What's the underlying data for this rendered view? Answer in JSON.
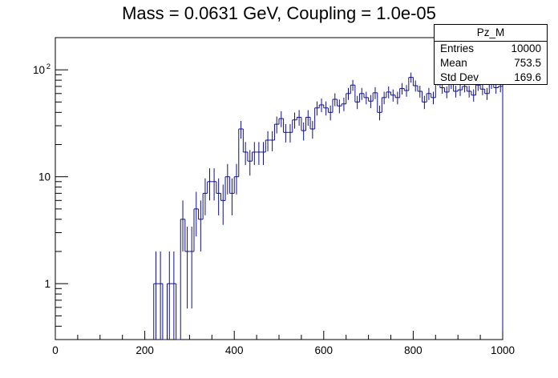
{
  "chart_data": {
    "type": "histogram",
    "title": "Mass = 0.0631 GeV, Coupling = 1.0e-05",
    "xlim": [
      0,
      1000
    ],
    "ylim": [
      0.3,
      200
    ],
    "y_scale": "log",
    "x_ticks": [
      "0",
      "200",
      "400",
      "600",
      "800",
      "1000"
    ],
    "y_ticks": [
      {
        "value": 1,
        "label": "1"
      },
      {
        "value": 10,
        "label": "10"
      },
      {
        "value": 100,
        "label": "10",
        "exp": "2"
      }
    ],
    "bin_width": 10,
    "line_color": "#0d0d8f",
    "bins": [
      [
        220,
        1
      ],
      [
        230,
        1
      ],
      [
        240,
        0
      ],
      [
        250,
        1
      ],
      [
        260,
        1
      ],
      [
        270,
        0
      ],
      [
        280,
        4
      ],
      [
        290,
        2
      ],
      [
        300,
        2
      ],
      [
        310,
        5
      ],
      [
        320,
        4
      ],
      [
        330,
        7
      ],
      [
        340,
        9
      ],
      [
        350,
        9
      ],
      [
        360,
        7
      ],
      [
        370,
        6
      ],
      [
        380,
        10
      ],
      [
        390,
        7
      ],
      [
        400,
        10
      ],
      [
        410,
        28
      ],
      [
        420,
        17
      ],
      [
        430,
        14
      ],
      [
        440,
        17
      ],
      [
        450,
        17
      ],
      [
        460,
        17
      ],
      [
        470,
        22
      ],
      [
        480,
        22
      ],
      [
        490,
        31
      ],
      [
        500,
        35
      ],
      [
        510,
        26
      ],
      [
        520,
        26
      ],
      [
        530,
        34
      ],
      [
        540,
        36
      ],
      [
        550,
        27
      ],
      [
        560,
        36
      ],
      [
        570,
        28
      ],
      [
        580,
        44
      ],
      [
        590,
        47
      ],
      [
        600,
        44
      ],
      [
        610,
        40
      ],
      [
        620,
        53
      ],
      [
        630,
        46
      ],
      [
        640,
        48
      ],
      [
        650,
        60
      ],
      [
        660,
        72
      ],
      [
        670,
        50
      ],
      [
        680,
        60
      ],
      [
        690,
        55
      ],
      [
        700,
        51
      ],
      [
        710,
        61
      ],
      [
        720,
        40
      ],
      [
        730,
        55
      ],
      [
        740,
        62
      ],
      [
        750,
        58
      ],
      [
        760,
        55
      ],
      [
        770,
        67
      ],
      [
        780,
        64
      ],
      [
        790,
        85
      ],
      [
        800,
        71
      ],
      [
        810,
        63
      ],
      [
        820,
        50
      ],
      [
        830,
        60
      ],
      [
        840,
        55
      ],
      [
        850,
        80
      ],
      [
        860,
        68
      ],
      [
        870,
        62
      ],
      [
        880,
        75
      ],
      [
        890,
        63
      ],
      [
        900,
        65
      ],
      [
        910,
        70
      ],
      [
        920,
        63
      ],
      [
        930,
        58
      ],
      [
        940,
        72
      ],
      [
        950,
        66
      ],
      [
        960,
        60
      ],
      [
        970,
        75
      ],
      [
        980,
        68
      ],
      [
        990,
        70
      ]
    ]
  },
  "stats_box": {
    "name": "Pz_M",
    "rows": [
      {
        "label": "Entries",
        "value": "10000"
      },
      {
        "label": "Mean",
        "value": "753.5"
      },
      {
        "label": "Std Dev",
        "value": "169.6"
      }
    ]
  }
}
